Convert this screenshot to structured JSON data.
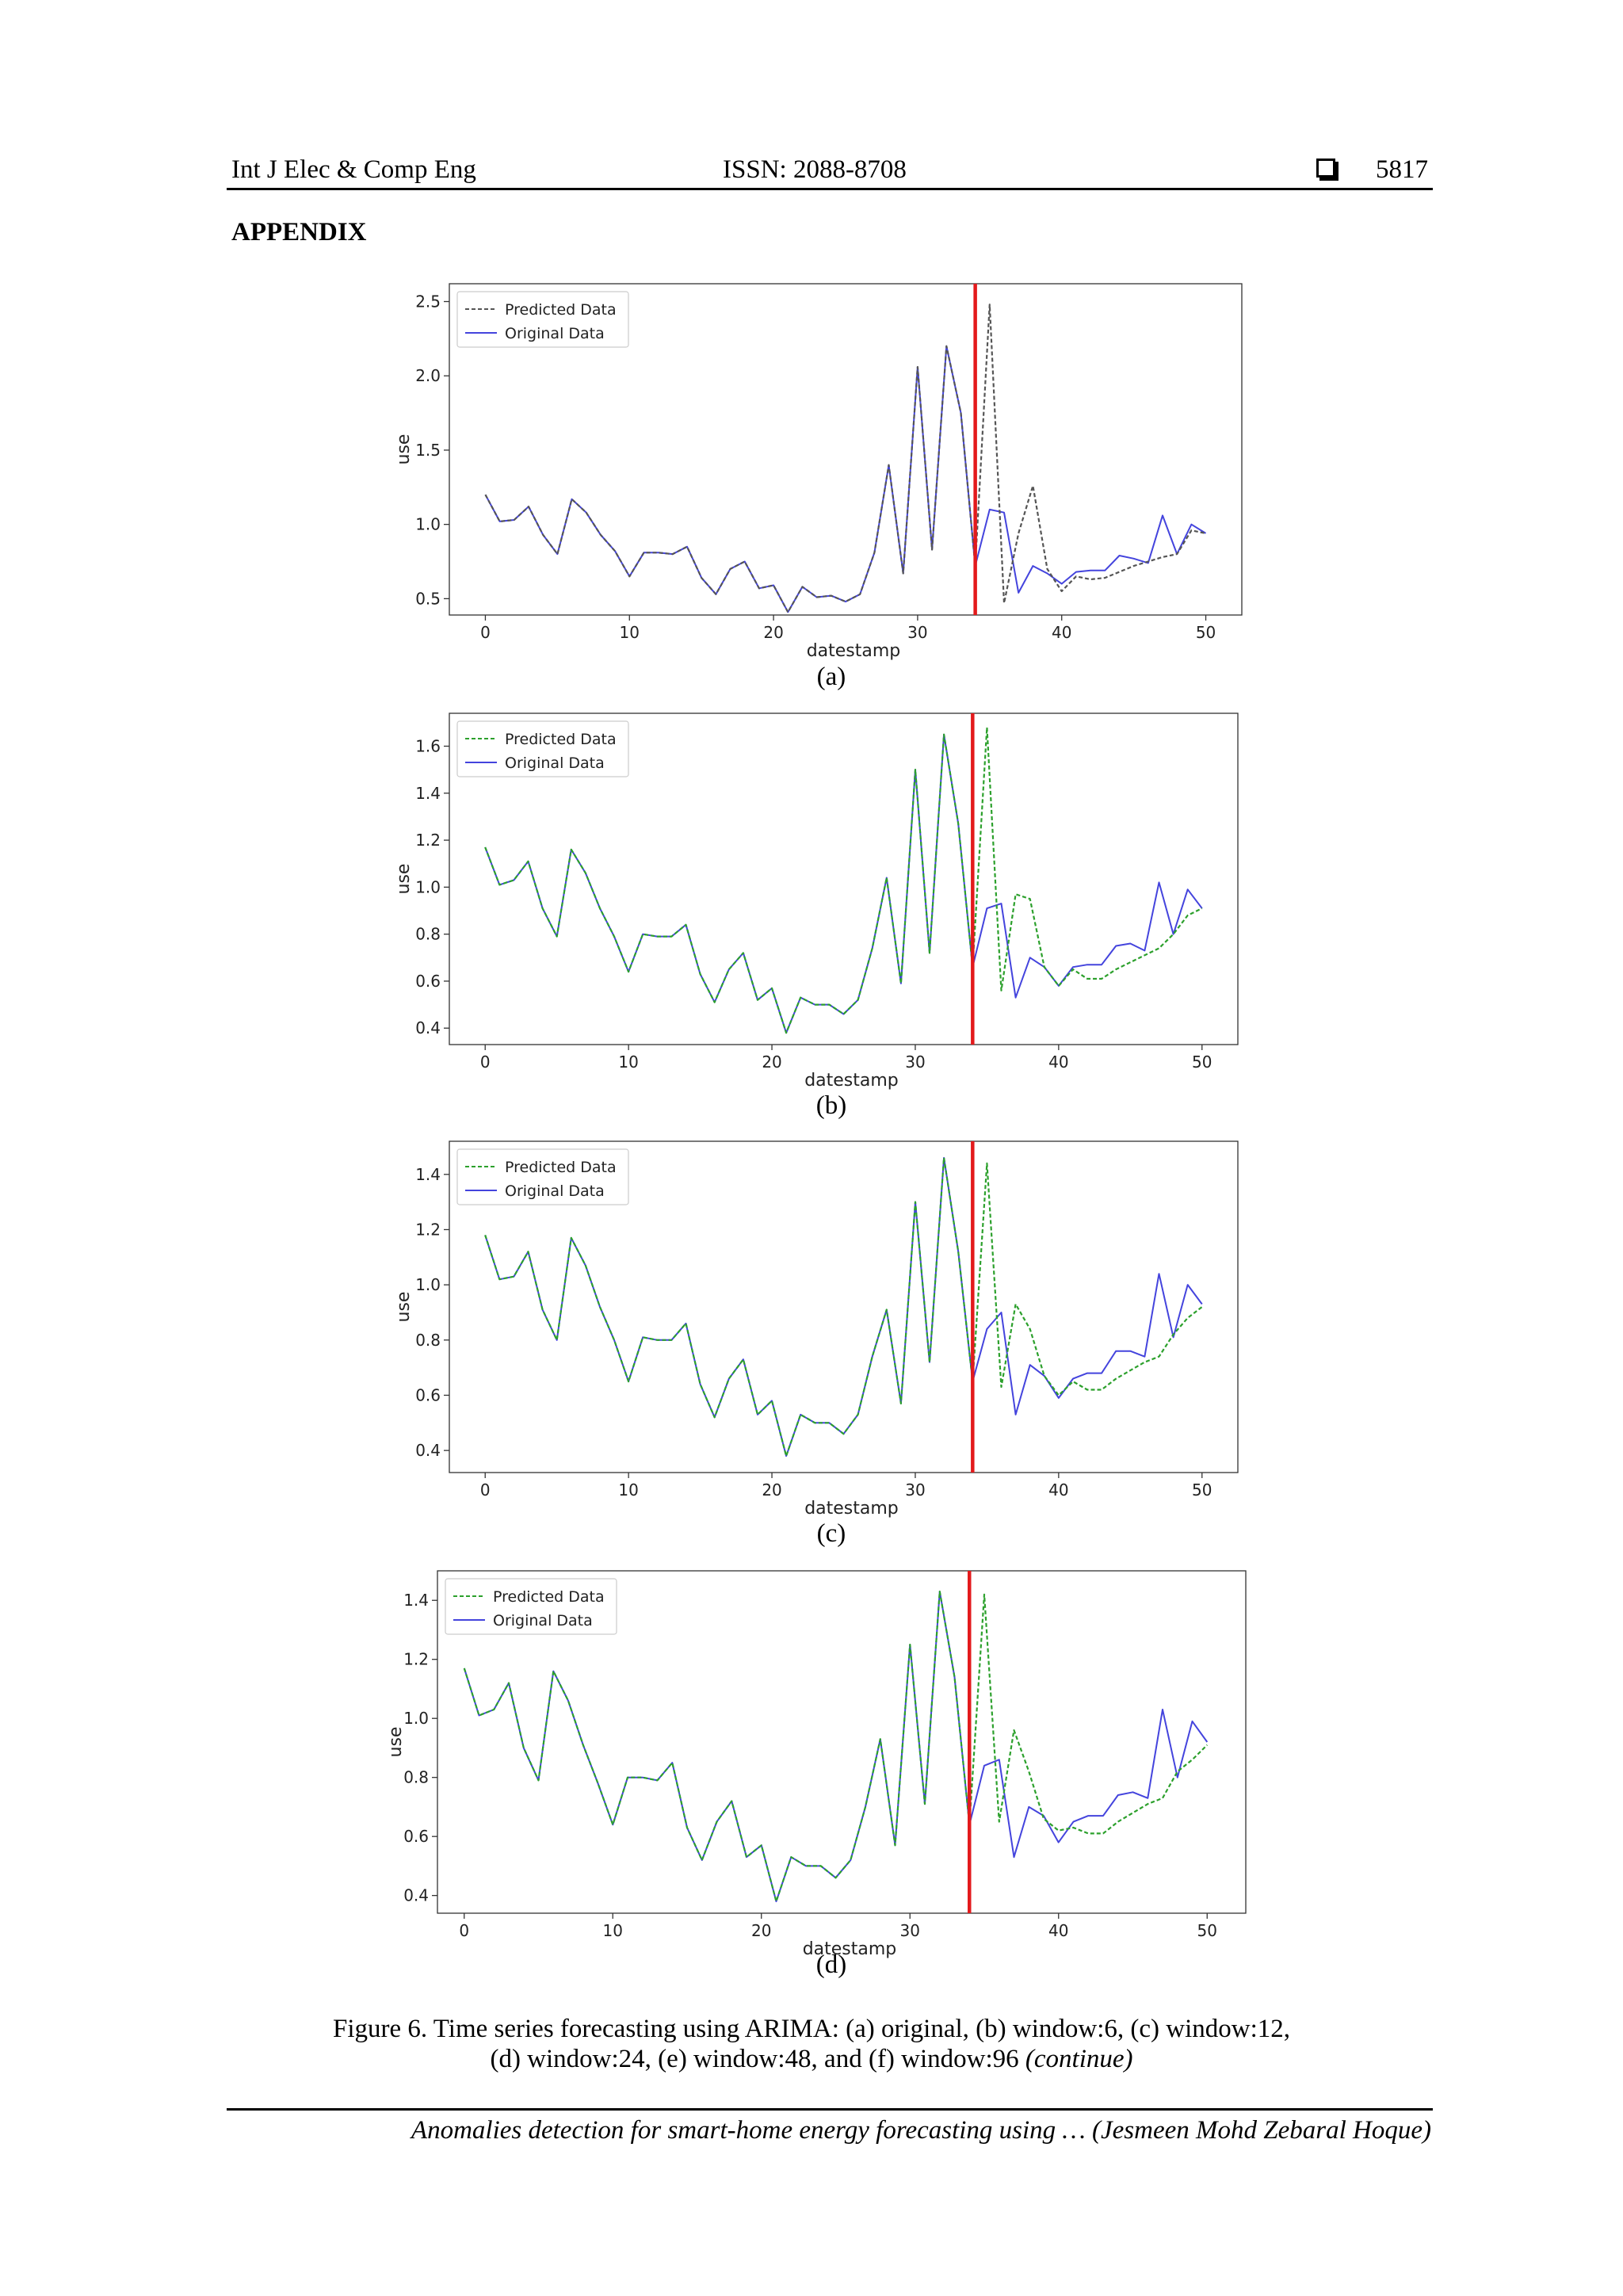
{
  "header": {
    "journal": "Int J Elec & Comp Eng",
    "issn": "ISSN: 2088-8708",
    "page_number": "5817"
  },
  "section_title": "APPENDIX",
  "chart_data": [
    {
      "type": "line",
      "panel_label": "(a)",
      "xlabel": "datestamp",
      "ylabel": "use",
      "xlim": [
        -2.5,
        52.5
      ],
      "ylim": [
        0.39,
        2.62
      ],
      "xticks": [
        0,
        10,
        20,
        30,
        40,
        50
      ],
      "yticks": [
        0.5,
        1.0,
        1.5,
        2.0,
        2.5
      ],
      "ytick_labels": [
        "0.5",
        "1.0",
        "1.5",
        "2.0",
        "2.5"
      ],
      "vline_x": 34,
      "vline_color": "#e31a1c",
      "legend": [
        "Predicted Data",
        "Original Data"
      ],
      "legend_position": "upper-left",
      "series": [
        {
          "name": "Predicted Data",
          "style": "dashed",
          "color": "#555555",
          "x": [
            0,
            1,
            2,
            3,
            4,
            5,
            6,
            7,
            8,
            9,
            10,
            11,
            12,
            13,
            14,
            15,
            16,
            17,
            18,
            19,
            20,
            21,
            22,
            23,
            24,
            25,
            26,
            27,
            28,
            29,
            30,
            31,
            32,
            33,
            34,
            35,
            36,
            37,
            38,
            39,
            40,
            41,
            42,
            43,
            44,
            45,
            46,
            47,
            48,
            49,
            50
          ],
          "values": [
            1.2,
            1.02,
            1.03,
            1.12,
            0.93,
            0.8,
            1.17,
            1.08,
            0.93,
            0.82,
            0.65,
            0.81,
            0.81,
            0.8,
            0.85,
            0.64,
            0.53,
            0.7,
            0.75,
            0.57,
            0.59,
            0.41,
            0.58,
            0.51,
            0.52,
            0.48,
            0.53,
            0.81,
            1.4,
            0.67,
            2.06,
            0.83,
            2.2,
            1.75,
            0.72,
            2.48,
            0.47,
            0.94,
            1.26,
            0.7,
            0.55,
            0.65,
            0.63,
            0.64,
            0.68,
            0.72,
            0.75,
            0.78,
            0.8,
            0.96,
            0.94
          ]
        },
        {
          "name": "Original Data",
          "style": "solid",
          "color": "#4444dd",
          "x": [
            0,
            1,
            2,
            3,
            4,
            5,
            6,
            7,
            8,
            9,
            10,
            11,
            12,
            13,
            14,
            15,
            16,
            17,
            18,
            19,
            20,
            21,
            22,
            23,
            24,
            25,
            26,
            27,
            28,
            29,
            30,
            31,
            32,
            33,
            34,
            35,
            36,
            37,
            38,
            39,
            40,
            41,
            42,
            43,
            44,
            45,
            46,
            47,
            48,
            49,
            50
          ],
          "values": [
            1.2,
            1.02,
            1.03,
            1.12,
            0.93,
            0.8,
            1.17,
            1.08,
            0.93,
            0.82,
            0.65,
            0.81,
            0.81,
            0.8,
            0.85,
            0.64,
            0.53,
            0.7,
            0.75,
            0.57,
            0.59,
            0.41,
            0.58,
            0.51,
            0.52,
            0.48,
            0.53,
            0.81,
            1.4,
            0.67,
            2.06,
            0.83,
            2.2,
            1.75,
            0.72,
            1.1,
            1.08,
            0.54,
            0.72,
            0.67,
            0.6,
            0.68,
            0.69,
            0.69,
            0.79,
            0.77,
            0.74,
            1.06,
            0.8,
            1.0,
            0.94
          ]
        }
      ]
    },
    {
      "type": "line",
      "panel_label": "(b)",
      "xlabel": "datestamp",
      "ylabel": "use",
      "xlim": [
        -2.5,
        52.5
      ],
      "ylim": [
        0.33,
        1.74
      ],
      "xticks": [
        0,
        10,
        20,
        30,
        40,
        50
      ],
      "yticks": [
        0.4,
        0.6,
        0.8,
        1.0,
        1.2,
        1.4,
        1.6
      ],
      "ytick_labels": [
        "0.4",
        "0.6",
        "0.8",
        "1.0",
        "1.2",
        "1.4",
        "1.6"
      ],
      "vline_x": 34,
      "vline_color": "#e31a1c",
      "legend": [
        "Predicted Data",
        "Original Data"
      ],
      "legend_position": "upper-left",
      "series": [
        {
          "name": "Predicted Data",
          "style": "dashed",
          "color": "#2ca02c",
          "x": [
            0,
            1,
            2,
            3,
            4,
            5,
            6,
            7,
            8,
            9,
            10,
            11,
            12,
            13,
            14,
            15,
            16,
            17,
            18,
            19,
            20,
            21,
            22,
            23,
            24,
            25,
            26,
            27,
            28,
            29,
            30,
            31,
            32,
            33,
            34,
            35,
            36,
            37,
            38,
            39,
            40,
            41,
            42,
            43,
            44,
            45,
            46,
            47,
            48,
            49,
            50
          ],
          "values": [
            1.17,
            1.01,
            1.03,
            1.11,
            0.91,
            0.79,
            1.16,
            1.06,
            0.91,
            0.79,
            0.64,
            0.8,
            0.79,
            0.79,
            0.84,
            0.63,
            0.51,
            0.65,
            0.72,
            0.52,
            0.57,
            0.38,
            0.53,
            0.5,
            0.5,
            0.46,
            0.52,
            0.74,
            1.04,
            0.59,
            1.5,
            0.72,
            1.65,
            1.27,
            0.66,
            1.68,
            0.56,
            0.97,
            0.95,
            0.66,
            0.58,
            0.65,
            0.61,
            0.61,
            0.65,
            0.68,
            0.71,
            0.74,
            0.8,
            0.88,
            0.91
          ]
        },
        {
          "name": "Original Data",
          "style": "solid",
          "color": "#4444dd",
          "x": [
            0,
            1,
            2,
            3,
            4,
            5,
            6,
            7,
            8,
            9,
            10,
            11,
            12,
            13,
            14,
            15,
            16,
            17,
            18,
            19,
            20,
            21,
            22,
            23,
            24,
            25,
            26,
            27,
            28,
            29,
            30,
            31,
            32,
            33,
            34,
            35,
            36,
            37,
            38,
            39,
            40,
            41,
            42,
            43,
            44,
            45,
            46,
            47,
            48,
            49,
            50
          ],
          "values": [
            1.17,
            1.01,
            1.03,
            1.11,
            0.91,
            0.79,
            1.16,
            1.06,
            0.91,
            0.79,
            0.64,
            0.8,
            0.79,
            0.79,
            0.84,
            0.63,
            0.51,
            0.65,
            0.72,
            0.52,
            0.57,
            0.38,
            0.53,
            0.5,
            0.5,
            0.46,
            0.52,
            0.74,
            1.04,
            0.59,
            1.5,
            0.72,
            1.65,
            1.27,
            0.66,
            0.91,
            0.93,
            0.53,
            0.7,
            0.66,
            0.58,
            0.66,
            0.67,
            0.67,
            0.75,
            0.76,
            0.73,
            1.02,
            0.8,
            0.99,
            0.91
          ]
        }
      ]
    },
    {
      "type": "line",
      "panel_label": "(c)",
      "xlabel": "datestamp",
      "ylabel": "use",
      "xlim": [
        -2.5,
        52.5
      ],
      "ylim": [
        0.32,
        1.52
      ],
      "xticks": [
        0,
        10,
        20,
        30,
        40,
        50
      ],
      "yticks": [
        0.4,
        0.6,
        0.8,
        1.0,
        1.2,
        1.4
      ],
      "ytick_labels": [
        "0.4",
        "0.6",
        "0.8",
        "1.0",
        "1.2",
        "1.4"
      ],
      "vline_x": 34,
      "vline_color": "#e31a1c",
      "legend": [
        "Predicted Data",
        "Original Data"
      ],
      "legend_position": "upper-left",
      "series": [
        {
          "name": "Predicted Data",
          "style": "dashed",
          "color": "#2ca02c",
          "x": [
            0,
            1,
            2,
            3,
            4,
            5,
            6,
            7,
            8,
            9,
            10,
            11,
            12,
            13,
            14,
            15,
            16,
            17,
            18,
            19,
            20,
            21,
            22,
            23,
            24,
            25,
            26,
            27,
            28,
            29,
            30,
            31,
            32,
            33,
            34,
            35,
            36,
            37,
            38,
            39,
            40,
            41,
            42,
            43,
            44,
            45,
            46,
            47,
            48,
            49,
            50
          ],
          "values": [
            1.18,
            1.02,
            1.03,
            1.12,
            0.91,
            0.8,
            1.17,
            1.07,
            0.92,
            0.8,
            0.65,
            0.81,
            0.8,
            0.8,
            0.86,
            0.64,
            0.52,
            0.66,
            0.73,
            0.53,
            0.58,
            0.38,
            0.53,
            0.5,
            0.5,
            0.46,
            0.53,
            0.74,
            0.91,
            0.57,
            1.3,
            0.72,
            1.46,
            1.12,
            0.65,
            1.44,
            0.63,
            0.93,
            0.84,
            0.67,
            0.6,
            0.65,
            0.62,
            0.62,
            0.66,
            0.69,
            0.72,
            0.74,
            0.82,
            0.88,
            0.92
          ]
        },
        {
          "name": "Original Data",
          "style": "solid",
          "color": "#4444dd",
          "x": [
            0,
            1,
            2,
            3,
            4,
            5,
            6,
            7,
            8,
            9,
            10,
            11,
            12,
            13,
            14,
            15,
            16,
            17,
            18,
            19,
            20,
            21,
            22,
            23,
            24,
            25,
            26,
            27,
            28,
            29,
            30,
            31,
            32,
            33,
            34,
            35,
            36,
            37,
            38,
            39,
            40,
            41,
            42,
            43,
            44,
            45,
            46,
            47,
            48,
            49,
            50
          ],
          "values": [
            1.18,
            1.02,
            1.03,
            1.12,
            0.91,
            0.8,
            1.17,
            1.07,
            0.92,
            0.8,
            0.65,
            0.81,
            0.8,
            0.8,
            0.86,
            0.64,
            0.52,
            0.66,
            0.73,
            0.53,
            0.58,
            0.38,
            0.53,
            0.5,
            0.5,
            0.46,
            0.53,
            0.74,
            0.91,
            0.57,
            1.3,
            0.72,
            1.46,
            1.12,
            0.65,
            0.84,
            0.9,
            0.53,
            0.71,
            0.67,
            0.59,
            0.66,
            0.68,
            0.68,
            0.76,
            0.76,
            0.74,
            1.04,
            0.81,
            1.0,
            0.93
          ]
        }
      ]
    },
    {
      "type": "line",
      "panel_label": "(d)",
      "xlabel": "datestamp",
      "ylabel": "use",
      "xlim": [
        -1.8,
        52.6
      ],
      "ylim": [
        0.34,
        1.5
      ],
      "xticks": [
        0,
        10,
        20,
        30,
        40,
        50
      ],
      "yticks": [
        0.4,
        0.6,
        0.8,
        1.0,
        1.2,
        1.4
      ],
      "ytick_labels": [
        "0.4",
        "0.6",
        "0.8",
        "1.0",
        "1.2",
        "1.4"
      ],
      "vline_x": 34,
      "vline_color": "#e31a1c",
      "legend": [
        "Predicted Data",
        "Original Data"
      ],
      "legend_position": "upper-left",
      "series": [
        {
          "name": "Predicted Data",
          "style": "dashed",
          "color": "#2ca02c",
          "x": [
            0,
            1,
            2,
            3,
            4,
            5,
            6,
            7,
            8,
            9,
            10,
            11,
            12,
            13,
            14,
            15,
            16,
            17,
            18,
            19,
            20,
            21,
            22,
            23,
            24,
            25,
            26,
            27,
            28,
            29,
            30,
            31,
            32,
            33,
            34,
            35,
            36,
            37,
            38,
            39,
            40,
            41,
            42,
            43,
            44,
            45,
            46,
            47,
            48,
            49,
            50
          ],
          "values": [
            1.17,
            1.01,
            1.03,
            1.12,
            0.9,
            0.79,
            1.16,
            1.06,
            0.91,
            0.78,
            0.64,
            0.8,
            0.8,
            0.79,
            0.85,
            0.63,
            0.52,
            0.65,
            0.72,
            0.53,
            0.57,
            0.38,
            0.53,
            0.5,
            0.5,
            0.46,
            0.52,
            0.7,
            0.93,
            0.57,
            1.25,
            0.71,
            1.43,
            1.14,
            0.64,
            1.42,
            0.65,
            0.96,
            0.82,
            0.66,
            0.62,
            0.63,
            0.61,
            0.61,
            0.65,
            0.68,
            0.71,
            0.73,
            0.82,
            0.86,
            0.91
          ]
        },
        {
          "name": "Original Data",
          "style": "solid",
          "color": "#4444dd",
          "x": [
            0,
            1,
            2,
            3,
            4,
            5,
            6,
            7,
            8,
            9,
            10,
            11,
            12,
            13,
            14,
            15,
            16,
            17,
            18,
            19,
            20,
            21,
            22,
            23,
            24,
            25,
            26,
            27,
            28,
            29,
            30,
            31,
            32,
            33,
            34,
            35,
            36,
            37,
            38,
            39,
            40,
            41,
            42,
            43,
            44,
            45,
            46,
            47,
            48,
            49,
            50
          ],
          "values": [
            1.17,
            1.01,
            1.03,
            1.12,
            0.9,
            0.79,
            1.16,
            1.06,
            0.91,
            0.78,
            0.64,
            0.8,
            0.8,
            0.79,
            0.85,
            0.63,
            0.52,
            0.65,
            0.72,
            0.53,
            0.57,
            0.38,
            0.53,
            0.5,
            0.5,
            0.46,
            0.52,
            0.7,
            0.93,
            0.57,
            1.25,
            0.71,
            1.43,
            1.14,
            0.64,
            0.84,
            0.86,
            0.53,
            0.7,
            0.67,
            0.58,
            0.65,
            0.67,
            0.67,
            0.74,
            0.75,
            0.73,
            1.03,
            0.8,
            0.99,
            0.92
          ]
        }
      ]
    }
  ],
  "caption": {
    "line1": "Figure 6. Time series forecasting using ARIMA: (a) original, (b) window:6, (c) window:12,",
    "line2": "(d) window:24, (e) window:48, and (f) window:96",
    "line2_suffix": "(continue)"
  },
  "footer": "Anomalies detection for smart-home energy forecasting using … (Jesmeen Mohd Zebaral Hoque)"
}
